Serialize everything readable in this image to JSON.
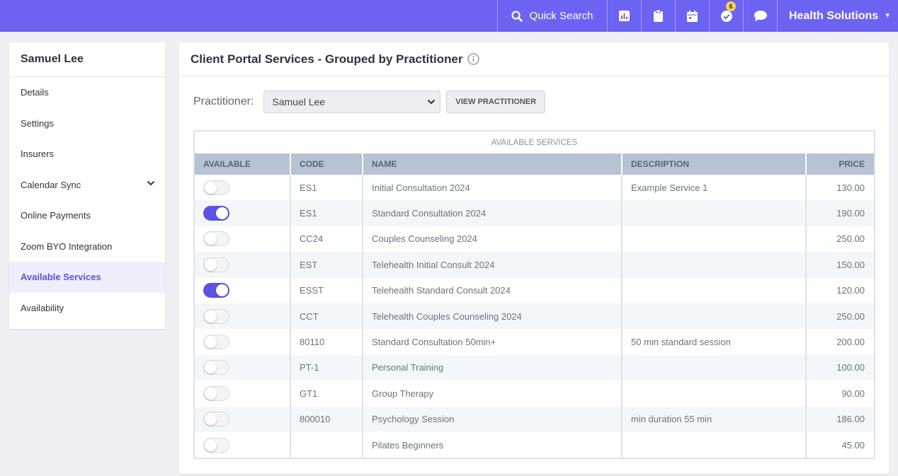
{
  "topbar": {
    "search_label": "Quick Search",
    "notification_count": "6",
    "org_label": "Health Solutions",
    "accent_color": "#6c63f3",
    "icons": [
      "search-icon",
      "chart-icon",
      "clipboard-icon",
      "calendar-icon",
      "check-circle-icon",
      "chat-icon",
      "caret-down-icon"
    ]
  },
  "sidebar": {
    "title": "Samuel Lee",
    "items": [
      {
        "label": "Details"
      },
      {
        "label": "Settings"
      },
      {
        "label": "Insurers"
      },
      {
        "label": "Calendar Sync"
      },
      {
        "label": "Online Payments"
      },
      {
        "label": "Zoom BYO Integration"
      },
      {
        "label": "Available Services"
      },
      {
        "label": "Availability"
      }
    ],
    "active_item": "Available Services"
  },
  "main": {
    "title": "Client Portal Services - Grouped by Practitioner",
    "practitioner_label": "Practitioner:",
    "practitioner_value": "Samuel Lee",
    "view_button": "VIEW PRACTITIONER",
    "table": {
      "title": "AVAILABLE SERVICES",
      "headers": {
        "available": "AVAILABLE",
        "code": "CODE",
        "name": "NAME",
        "description": "DESCRIPTION",
        "price": "PRICE"
      },
      "rows": [
        {
          "available": false,
          "code": "ES1",
          "name": "Initial Consultation 2024",
          "description": "Example Service 1",
          "price": "130.00"
        },
        {
          "available": true,
          "code": "ES1",
          "name": "Standard Consultation 2024",
          "description": "",
          "price": "190.00"
        },
        {
          "available": false,
          "code": "CC24",
          "name": "Couples Counseling 2024",
          "description": "",
          "price": "250.00"
        },
        {
          "available": false,
          "code": "EST",
          "name": "Telehealth Initial Consult 2024",
          "description": "",
          "price": "150.00"
        },
        {
          "available": true,
          "code": "ESST",
          "name": "Telehealth Standard Consult 2024",
          "description": "",
          "price": "120.00"
        },
        {
          "available": false,
          "code": "CCT",
          "name": "Telehealth Couples Counseling 2024",
          "description": "",
          "price": "250.00"
        },
        {
          "available": false,
          "code": "80110",
          "name": "Standard Consultation 50min+",
          "description": "50 min standard session",
          "price": "200.00"
        },
        {
          "available": false,
          "code": "PT-1",
          "name": "Personal Training",
          "description": "",
          "price": "100.00"
        },
        {
          "available": false,
          "code": "GT1",
          "name": "Group Therapy",
          "description": "",
          "price": "90.00"
        },
        {
          "available": false,
          "code": "800010",
          "name": "Psychology Session",
          "description": "min duration 55 min",
          "price": "186.00"
        },
        {
          "available": false,
          "code": "",
          "name": "Pilates Beginners",
          "description": "",
          "price": "45.00"
        }
      ]
    }
  }
}
